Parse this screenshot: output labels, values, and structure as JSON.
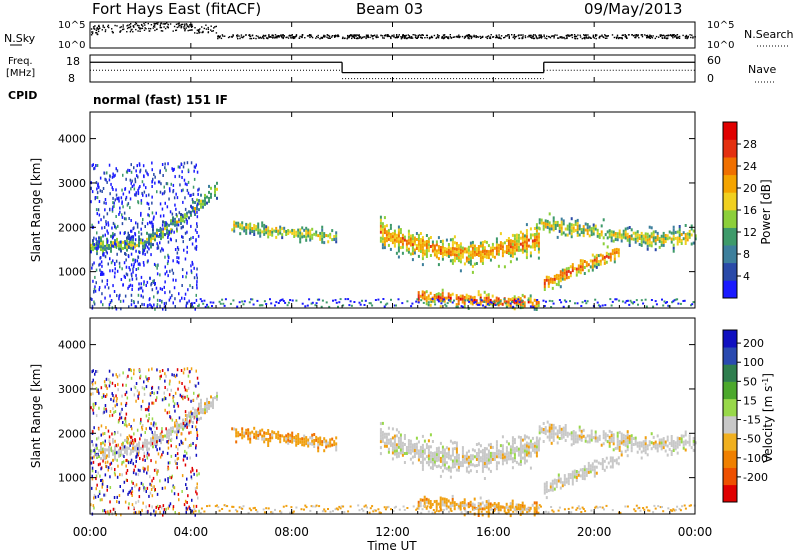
{
  "header": {
    "site": "Fort Hays East (fitACF)",
    "beam": "Beam 03",
    "date": "09/May/2013"
  },
  "noise_panel": {
    "left_label": "N.Sky",
    "right_label": "N.Search",
    "left_ticks": [
      "10^5",
      "10^0"
    ],
    "right_ticks": [
      "10^5",
      "10^0"
    ]
  },
  "freq_panel": {
    "left_label_1": "Freq.",
    "left_label_2": "[MHz]",
    "right_label": "Nave",
    "left_ticks": [
      "18",
      "8"
    ],
    "right_ticks": [
      "60",
      "0"
    ],
    "cpid_label": "CPID",
    "mode_text": "normal (fast) 151 IF"
  },
  "x_axis": {
    "label": "Time UT",
    "ticks": [
      "00:00",
      "04:00",
      "08:00",
      "12:00",
      "16:00",
      "20:00",
      "00:00"
    ]
  },
  "chart_data": [
    {
      "type": "heatmap",
      "name": "power",
      "ylabel": "Slant Range [km]",
      "yticks": [
        1000,
        2000,
        3000,
        4000
      ],
      "ylim": [
        180,
        4600
      ],
      "xlim_hours": [
        0,
        24
      ],
      "colorbar": {
        "label": "Power [dB]",
        "ticks": [
          "4",
          "8",
          "12",
          "16",
          "20",
          "24",
          "28"
        ],
        "colors": [
          "#1a1aff",
          "#2a4aa8",
          "#3d7f9c",
          "#3e9a6a",
          "#8ccf3a",
          "#f0d020",
          "#f4a400",
          "#f07000",
          "#e43010",
          "#e00000"
        ]
      },
      "bands": [
        {
          "t": [
            0.0,
            2.0,
            3.5,
            5.0
          ],
          "r": [
            1550,
            1600,
            2100,
            2800
          ],
          "w": 140,
          "level": 0.45
        },
        {
          "t": [
            5.6,
            7.0,
            8.5,
            9.8
          ],
          "r": [
            2000,
            1900,
            1820,
            1750
          ],
          "w": 110,
          "level": 0.55
        },
        {
          "t": [
            11.5,
            13.0,
            15.0,
            16.5,
            17.8
          ],
          "r": [
            1850,
            1550,
            1350,
            1500,
            1700
          ],
          "w": 230,
          "level": 0.7
        },
        {
          "t": [
            17.8,
            19.5,
            22.0,
            24.0
          ],
          "r": [
            2050,
            1900,
            1700,
            1750
          ],
          "w": 150,
          "level": 0.55
        },
        {
          "t": [
            13.0,
            15.5,
            17.8
          ],
          "r": [
            400,
            320,
            260
          ],
          "w": 110,
          "level": 0.85
        },
        {
          "t": [
            18.0,
            19.5,
            21.0
          ],
          "r": [
            700,
            1100,
            1400
          ],
          "w": 120,
          "level": 0.75
        }
      ]
    },
    {
      "type": "heatmap",
      "name": "velocity",
      "ylabel": "Slant Range [km]",
      "yticks": [
        1000,
        2000,
        3000,
        4000
      ],
      "ylim": [
        180,
        4600
      ],
      "xlim_hours": [
        0,
        24
      ],
      "colorbar": {
        "label": "Velocity [m s-1]",
        "ticks": [
          "200",
          "100",
          "50",
          "15",
          "-15",
          "-50",
          "-100",
          "-200"
        ],
        "colors": [
          "#1010c0",
          "#2a4ab0",
          "#2f7e4e",
          "#4ca82c",
          "#98d84a",
          "#c8c8c8",
          "#f0b020",
          "#f08000",
          "#ee5000",
          "#e00000"
        ]
      },
      "bands": [
        {
          "t": [
            0.0,
            2.0,
            3.5,
            5.0
          ],
          "r": [
            1550,
            1600,
            2100,
            2800
          ],
          "w": 140,
          "v": "grey"
        },
        {
          "t": [
            5.6,
            7.0,
            8.5,
            9.8
          ],
          "r": [
            2000,
            1900,
            1820,
            1750
          ],
          "w": 110,
          "v": "orange"
        },
        {
          "t": [
            11.5,
            13.0,
            15.0,
            16.5,
            17.8
          ],
          "r": [
            1850,
            1550,
            1350,
            1500,
            1700
          ],
          "w": 230,
          "v": "grey"
        },
        {
          "t": [
            17.8,
            19.5,
            22.0,
            24.0
          ],
          "r": [
            2050,
            1900,
            1700,
            1750
          ],
          "w": 150,
          "v": "grey"
        },
        {
          "t": [
            13.0,
            15.5,
            17.8
          ],
          "r": [
            400,
            320,
            260
          ],
          "w": 110,
          "v": "orange"
        },
        {
          "t": [
            18.0,
            19.5,
            21.0
          ],
          "r": [
            700,
            1100,
            1400
          ],
          "w": 120,
          "v": "grey"
        }
      ]
    }
  ],
  "freq_series": {
    "segments": [
      {
        "t": [
          0,
          10.0
        ],
        "mhz": 15.5
      },
      {
        "t": [
          10.0,
          18.0
        ],
        "mhz": 10.5
      },
      {
        "t": [
          18.0,
          24.0
        ],
        "mhz": 15.5
      }
    ],
    "nave_dotted": [
      {
        "t": [
          0,
          10.0
        ],
        "value": 28
      },
      {
        "t": [
          10.0,
          18.0
        ],
        "value": 8
      },
      {
        "t": [
          18.0,
          24.0
        ],
        "value": 28
      }
    ]
  }
}
